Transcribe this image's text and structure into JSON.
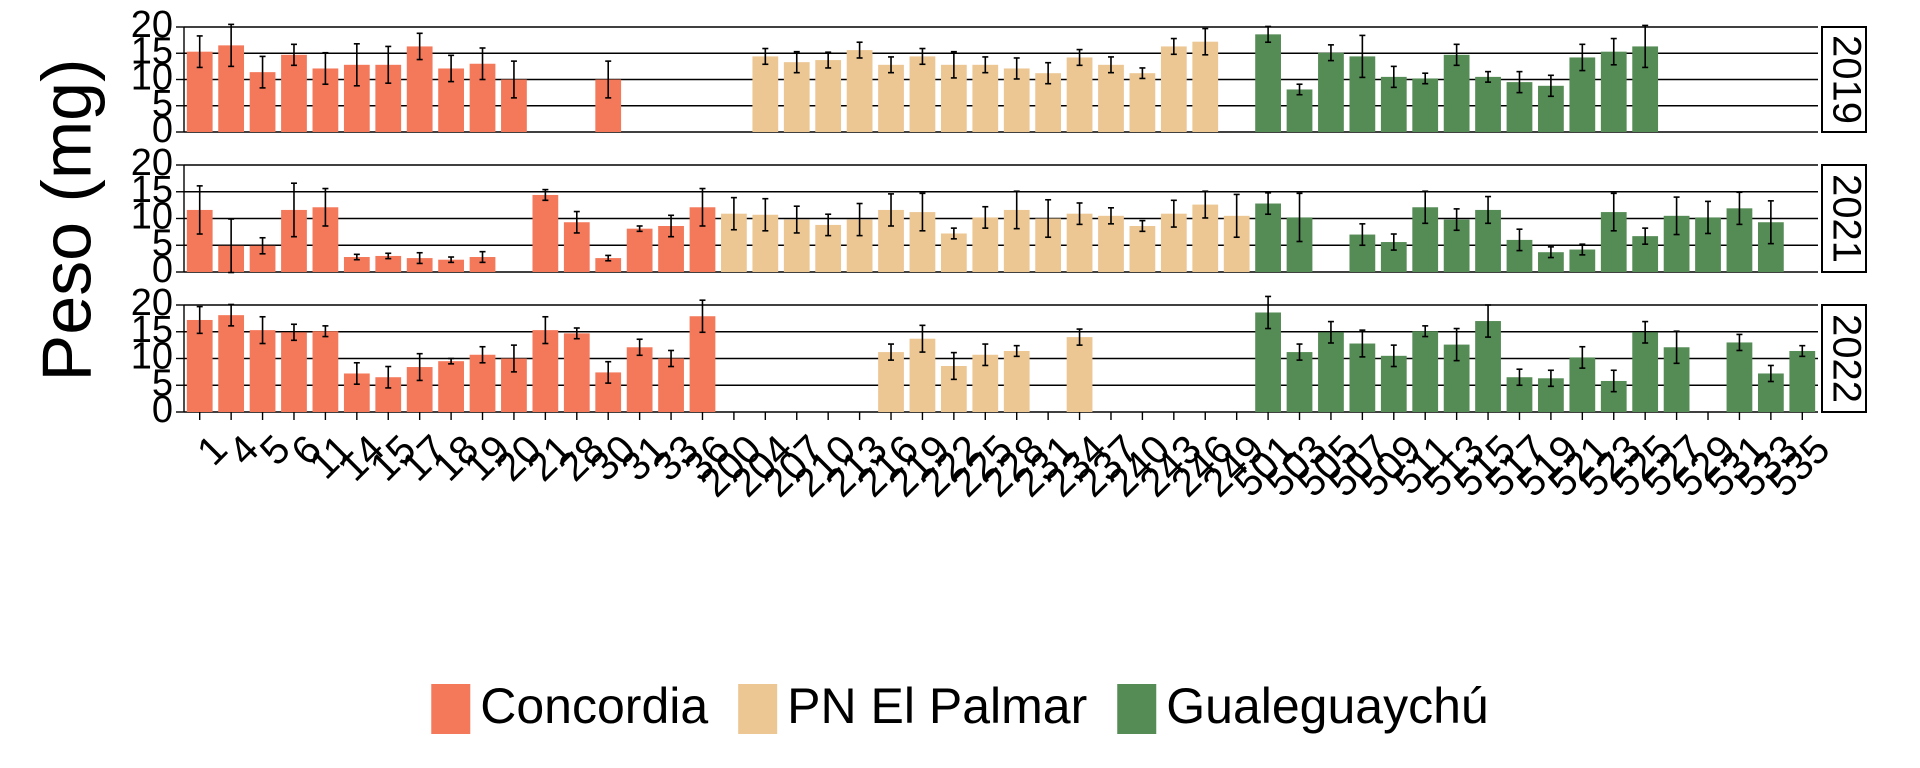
{
  "chart_data": {
    "type": "bar",
    "ylabel": "Peso (mg)",
    "ylim": [
      0,
      20
    ],
    "yticks": [
      0,
      5,
      10,
      15,
      20
    ],
    "grid": true,
    "legend": "bottom",
    "series": [
      {
        "name": "Concordia",
        "color": "#f4785a",
        "categories": [
          "1",
          "4",
          "5",
          "6",
          "11",
          "14",
          "15",
          "17",
          "18",
          "19",
          "20",
          "21",
          "28",
          "30",
          "31",
          "33",
          "36"
        ]
      },
      {
        "name": "PN El Palmar",
        "color": "#ecc793",
        "categories": [
          "200",
          "204",
          "207",
          "210",
          "213",
          "216",
          "219",
          "222",
          "225",
          "228",
          "231",
          "234",
          "237",
          "240",
          "243",
          "246",
          "249"
        ]
      },
      {
        "name": "Gualeguaychú",
        "color": "#558b55",
        "categories": [
          "501",
          "503",
          "505",
          "507",
          "509",
          "511",
          "513",
          "515",
          "517",
          "519",
          "521",
          "523",
          "525",
          "527",
          "529",
          "531",
          "533",
          "535"
        ]
      }
    ],
    "panels": [
      {
        "label": "2019",
        "series": [
          {
            "values": [
              15.3,
              16.5,
              11.4,
              14.7,
              12.1,
              12.8,
              12.8,
              16.3,
              12.1,
              13,
              10,
              null,
              null,
              10,
              null,
              null,
              null
            ],
            "errors": [
              3,
              4,
              3,
              2,
              3,
              4,
              3.5,
              2.5,
              2.5,
              3,
              3.5,
              null,
              null,
              3.5,
              null,
              null,
              null
            ]
          },
          {
            "values": [
              null,
              14.4,
              13.3,
              13.7,
              15.6,
              12.8,
              14.4,
              12.8,
              12.8,
              12.1,
              11.2,
              14.2,
              12.8,
              11.2,
              16.3,
              17.2,
              null
            ],
            "errors": [
              null,
              1.5,
              2,
              1.5,
              1.5,
              1.5,
              1.5,
              2.5,
              1.5,
              2,
              2,
              1.5,
              1.5,
              1,
              1.5,
              2.5,
              null
            ]
          },
          {
            "values": [
              18.6,
              8.1,
              15.1,
              14.4,
              10.5,
              10.2,
              14.7,
              10.5,
              9.5,
              8.8,
              14.2,
              15.3,
              16.3,
              null,
              null,
              null,
              null,
              null
            ],
            "errors": [
              1.5,
              1,
              1.5,
              4,
              2,
              1,
              2,
              1,
              2,
              2,
              2.5,
              2.5,
              4,
              null,
              null,
              null,
              null,
              null
            ]
          }
        ]
      },
      {
        "label": "2021",
        "series": [
          {
            "values": [
              11.6,
              4.9,
              4.9,
              11.6,
              12.1,
              2.8,
              3.0,
              2.6,
              2.3,
              2.8,
              null,
              14.4,
              9.3,
              2.6,
              8.1,
              8.6,
              12.1
            ],
            "errors": [
              4.5,
              5,
              1.5,
              5,
              3.5,
              0.5,
              0.5,
              1,
              0.5,
              1,
              null,
              1,
              2,
              0.5,
              0.5,
              2,
              3.5
            ]
          },
          {
            "values": [
              10.9,
              10.7,
              9.8,
              8.8,
              9.8,
              11.6,
              11.2,
              7.2,
              10.2,
              11.6,
              10,
              10.9,
              10.5,
              8.6,
              10.9,
              12.6,
              10.5
            ],
            "errors": [
              3,
              3,
              2.5,
              2,
              3,
              3,
              3.5,
              1,
              2,
              3.5,
              3.5,
              2,
              1.5,
              1,
              2.5,
              2.5,
              4
            ]
          },
          {
            "values": [
              12.8,
              10.2,
              null,
              7,
              5.6,
              12.1,
              9.8,
              11.6,
              6,
              3.7,
              4.2,
              11.2,
              6.7,
              10.5,
              10.2,
              11.9,
              9.3,
              null
            ],
            "errors": [
              2,
              4.5,
              null,
              2,
              1.5,
              3,
              2,
              2.5,
              2,
              1,
              1,
              3.5,
              1.5,
              3.5,
              3,
              3,
              4,
              null
            ]
          }
        ]
      },
      {
        "label": "2022",
        "series": [
          {
            "values": [
              17.2,
              18.1,
              15.3,
              14.9,
              15.1,
              7.2,
              6.5,
              8.4,
              9.5,
              10.7,
              10,
              15.3,
              14.7,
              7.4,
              12.1,
              10,
              17.9
            ],
            "errors": [
              2.5,
              2,
              2.5,
              1.5,
              1,
              2,
              2,
              2.5,
              0.5,
              1.5,
              2.5,
              2.5,
              1,
              2,
              1.5,
              1.5,
              3
            ]
          },
          {
            "values": [
              null,
              null,
              null,
              null,
              null,
              11.2,
              13.7,
              8.6,
              10.7,
              11.4,
              null,
              14,
              null,
              null,
              null,
              null,
              null
            ],
            "errors": [
              null,
              null,
              null,
              null,
              null,
              1.5,
              2.5,
              2.5,
              2,
              1,
              null,
              1.5,
              null,
              null,
              null,
              null,
              null
            ]
          },
          {
            "values": [
              18.6,
              11.2,
              14.9,
              12.8,
              10.5,
              15.1,
              12.6,
              17,
              6.5,
              6.3,
              10.2,
              5.8,
              14.9,
              12.1,
              null,
              13,
              7.2,
              11.4
            ],
            "errors": [
              3,
              1.5,
              2,
              2.5,
              2,
              1,
              3,
              3,
              1.5,
              1.5,
              2,
              2,
              2,
              3,
              null,
              1.5,
              1.5,
              1
            ]
          }
        ]
      }
    ]
  }
}
